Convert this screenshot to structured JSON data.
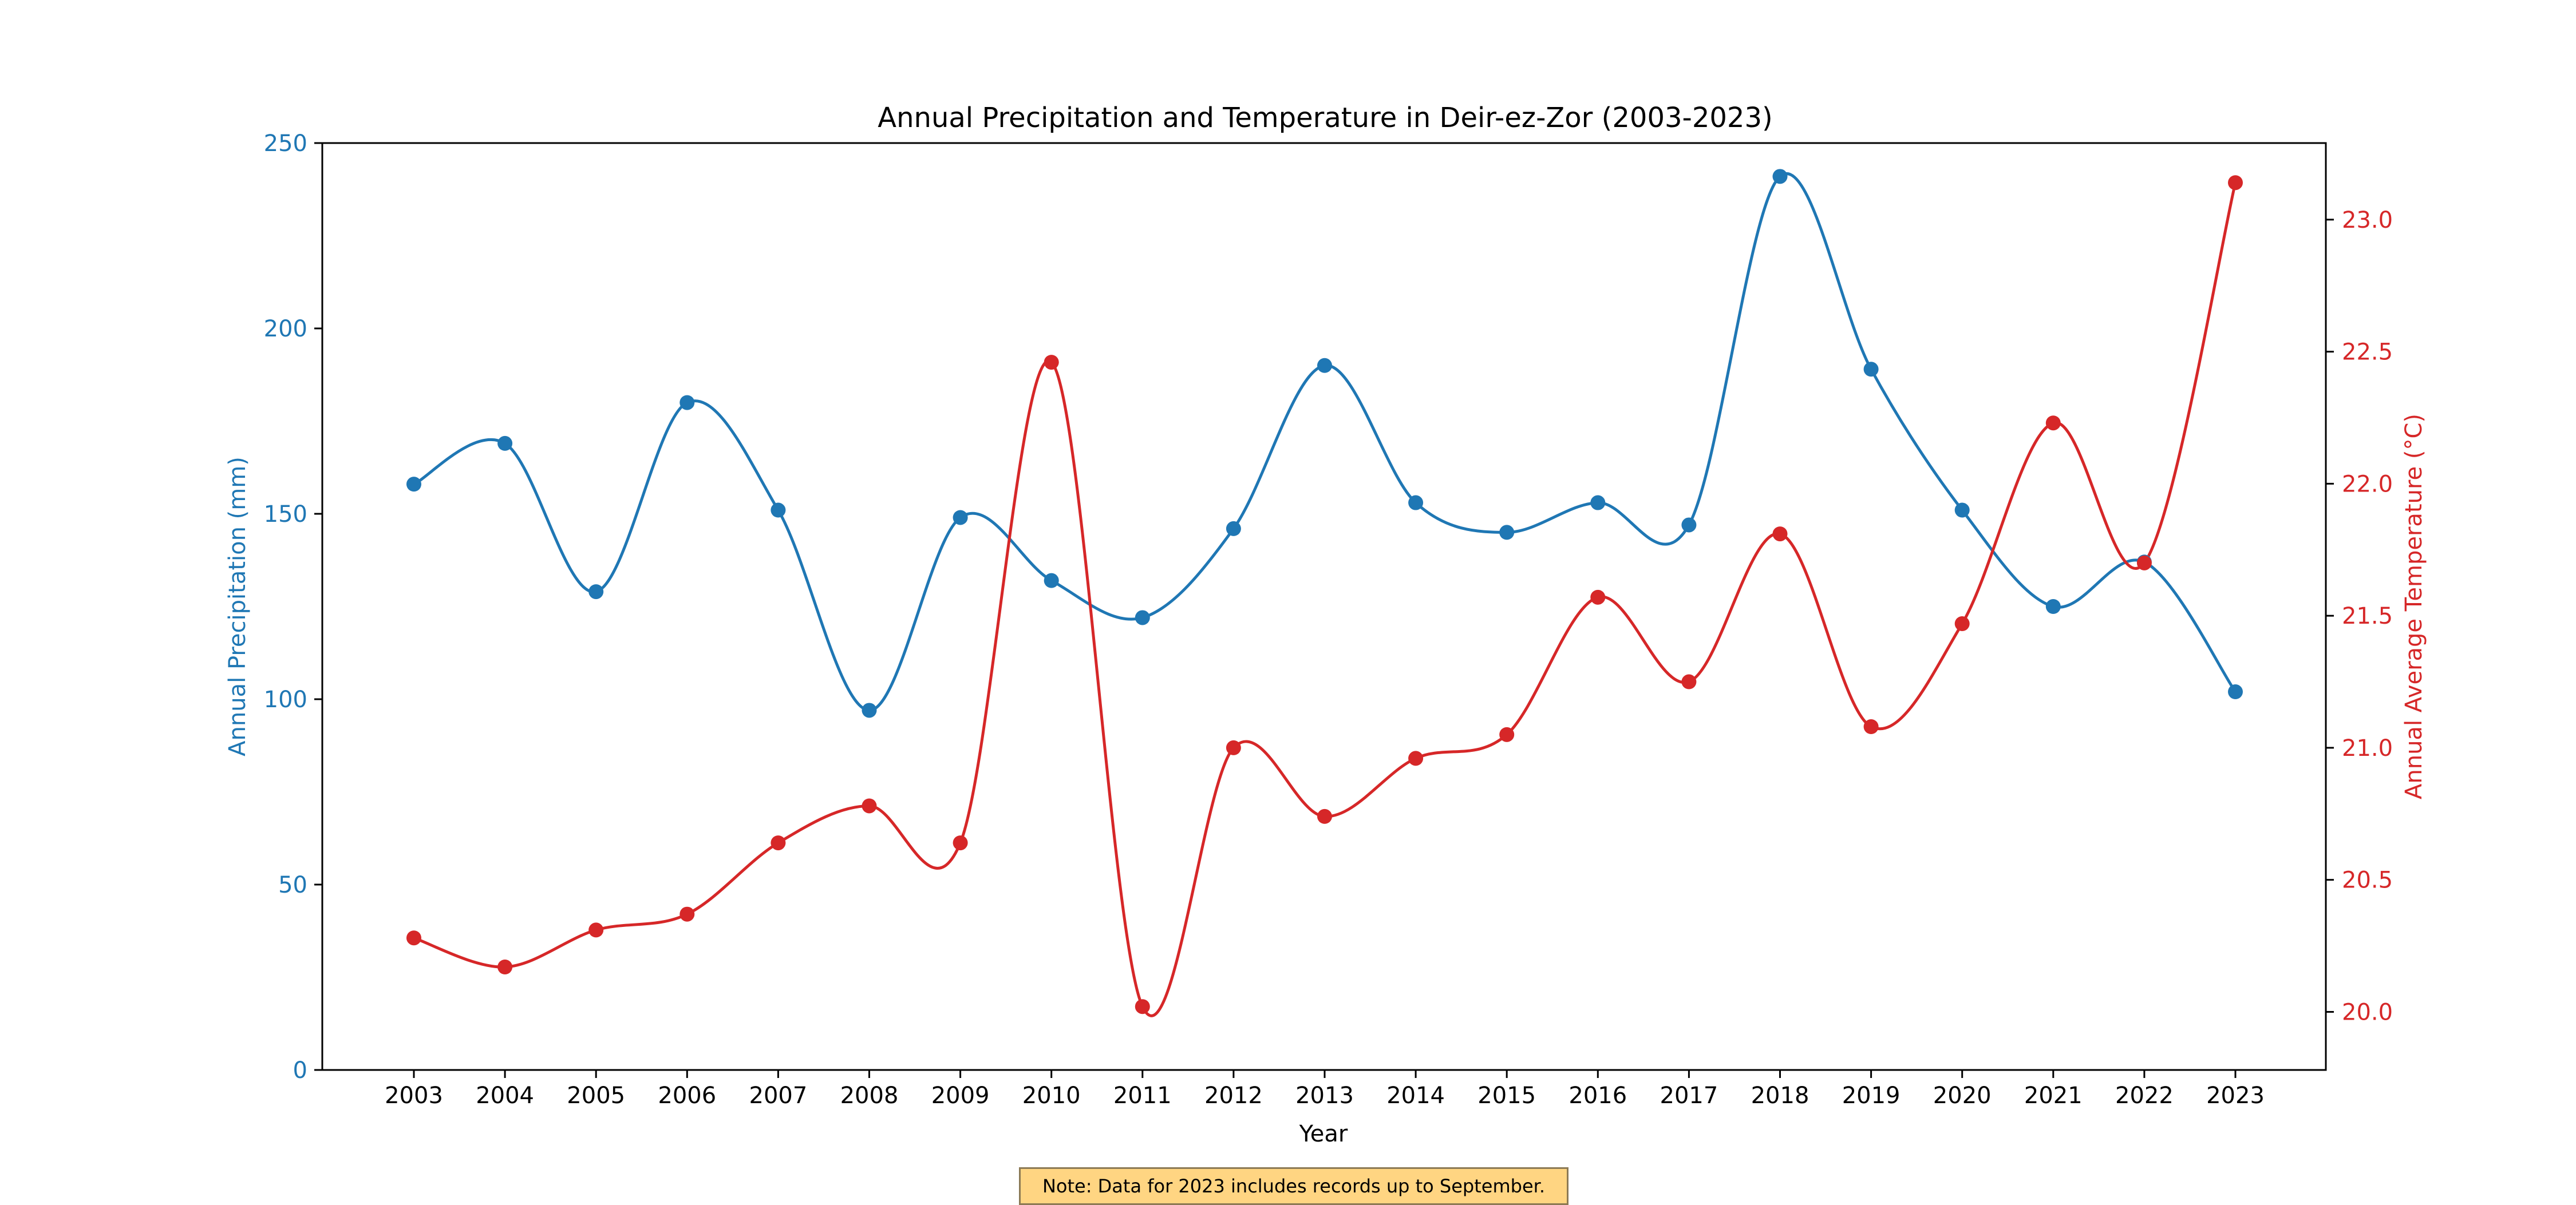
{
  "chart_data": {
    "type": "line",
    "title": "Annual Precipitation and Temperature in Deir-ez-Zor (2003-2023)",
    "xlabel": "Year",
    "x": [
      "2003",
      "2004",
      "2005",
      "2006",
      "2007",
      "2008",
      "2009",
      "2010",
      "2011",
      "2012",
      "2013",
      "2014",
      "2015",
      "2016",
      "2017",
      "2018",
      "2019",
      "2020",
      "2021",
      "2022",
      "2023"
    ],
    "series": [
      {
        "name": "Annual Precipitation (mm)",
        "axis": "left",
        "color": "#1f77b4",
        "values": [
          158,
          169,
          129,
          180,
          151,
          97,
          149,
          132,
          122,
          146,
          190,
          153,
          145,
          153,
          147,
          241,
          189,
          151,
          125,
          137,
          102
        ]
      },
      {
        "name": "Annual Average Temperature (°C)",
        "axis": "right",
        "color": "#d62728",
        "values": [
          20.28,
          20.17,
          20.31,
          20.37,
          20.64,
          20.78,
          20.64,
          22.46,
          20.02,
          21.0,
          20.74,
          20.96,
          21.05,
          21.57,
          21.25,
          21.81,
          21.08,
          21.47,
          22.23,
          21.7,
          23.14
        ]
      }
    ],
    "y_left": {
      "label": "Annual Precipitation (mm)",
      "ylim": [
        0,
        250
      ],
      "ticks": [
        "0",
        "50",
        "100",
        "150",
        "200",
        "250"
      ],
      "color": "#1f77b4"
    },
    "y_right": {
      "label": "Annual Average Temperature (°C)",
      "ylim": [
        19.78,
        23.29
      ],
      "ticks": [
        "20.0",
        "20.5",
        "21.0",
        "21.5",
        "22.0",
        "22.5",
        "23.0"
      ],
      "color": "#d62728"
    },
    "grid": false,
    "note": "Note: Data for 2023 includes records up to September."
  }
}
